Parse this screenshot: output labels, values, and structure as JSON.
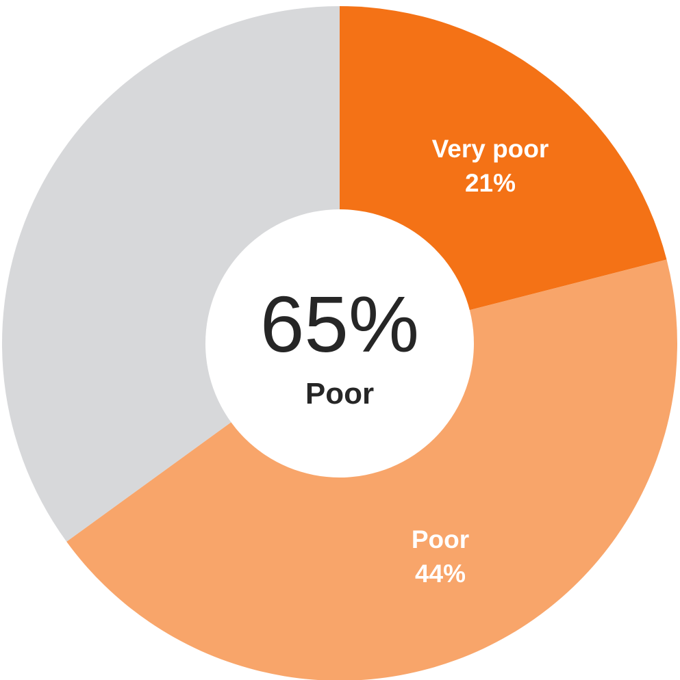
{
  "chart_data": {
    "type": "pie",
    "style": "donut",
    "start_angle": "12 o'clock",
    "direction": "clockwise",
    "center_value": "65%",
    "center_label": "Poor",
    "slices": [
      {
        "value": 21,
        "label": "Very poor",
        "value_label": "21%",
        "color": "#F47216"
      },
      {
        "value": 44,
        "label": "Poor",
        "value_label": "44%",
        "color": "#F8A56A"
      },
      {
        "value": 35,
        "label": "",
        "value_label": "",
        "color": "#D7D8DA"
      }
    ]
  }
}
